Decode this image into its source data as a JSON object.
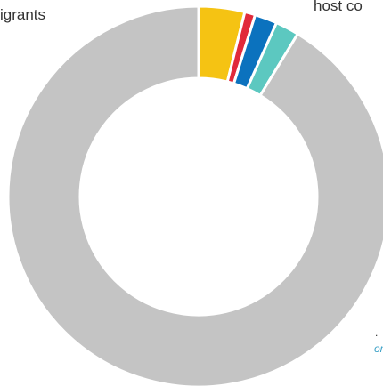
{
  "text_fragments": {
    "top_left": "igrants",
    "top_right": "host co",
    "note_end": ".",
    "link_end": "org"
  },
  "chart_data": {
    "type": "pie",
    "donut": true,
    "slices": [
      {
        "label": "",
        "value": 3.9,
        "color": "#f5c313"
      },
      {
        "label": "",
        "value": 0.9,
        "color": "#e12a3a"
      },
      {
        "label": "",
        "value": 1.9,
        "color": "#0b72be"
      },
      {
        "label": "",
        "value": 2.0,
        "color": "#5cc8c0"
      },
      {
        "label": "",
        "value": 91.3,
        "color": "#c4c4c4"
      }
    ],
    "title": "",
    "legend": "none"
  }
}
